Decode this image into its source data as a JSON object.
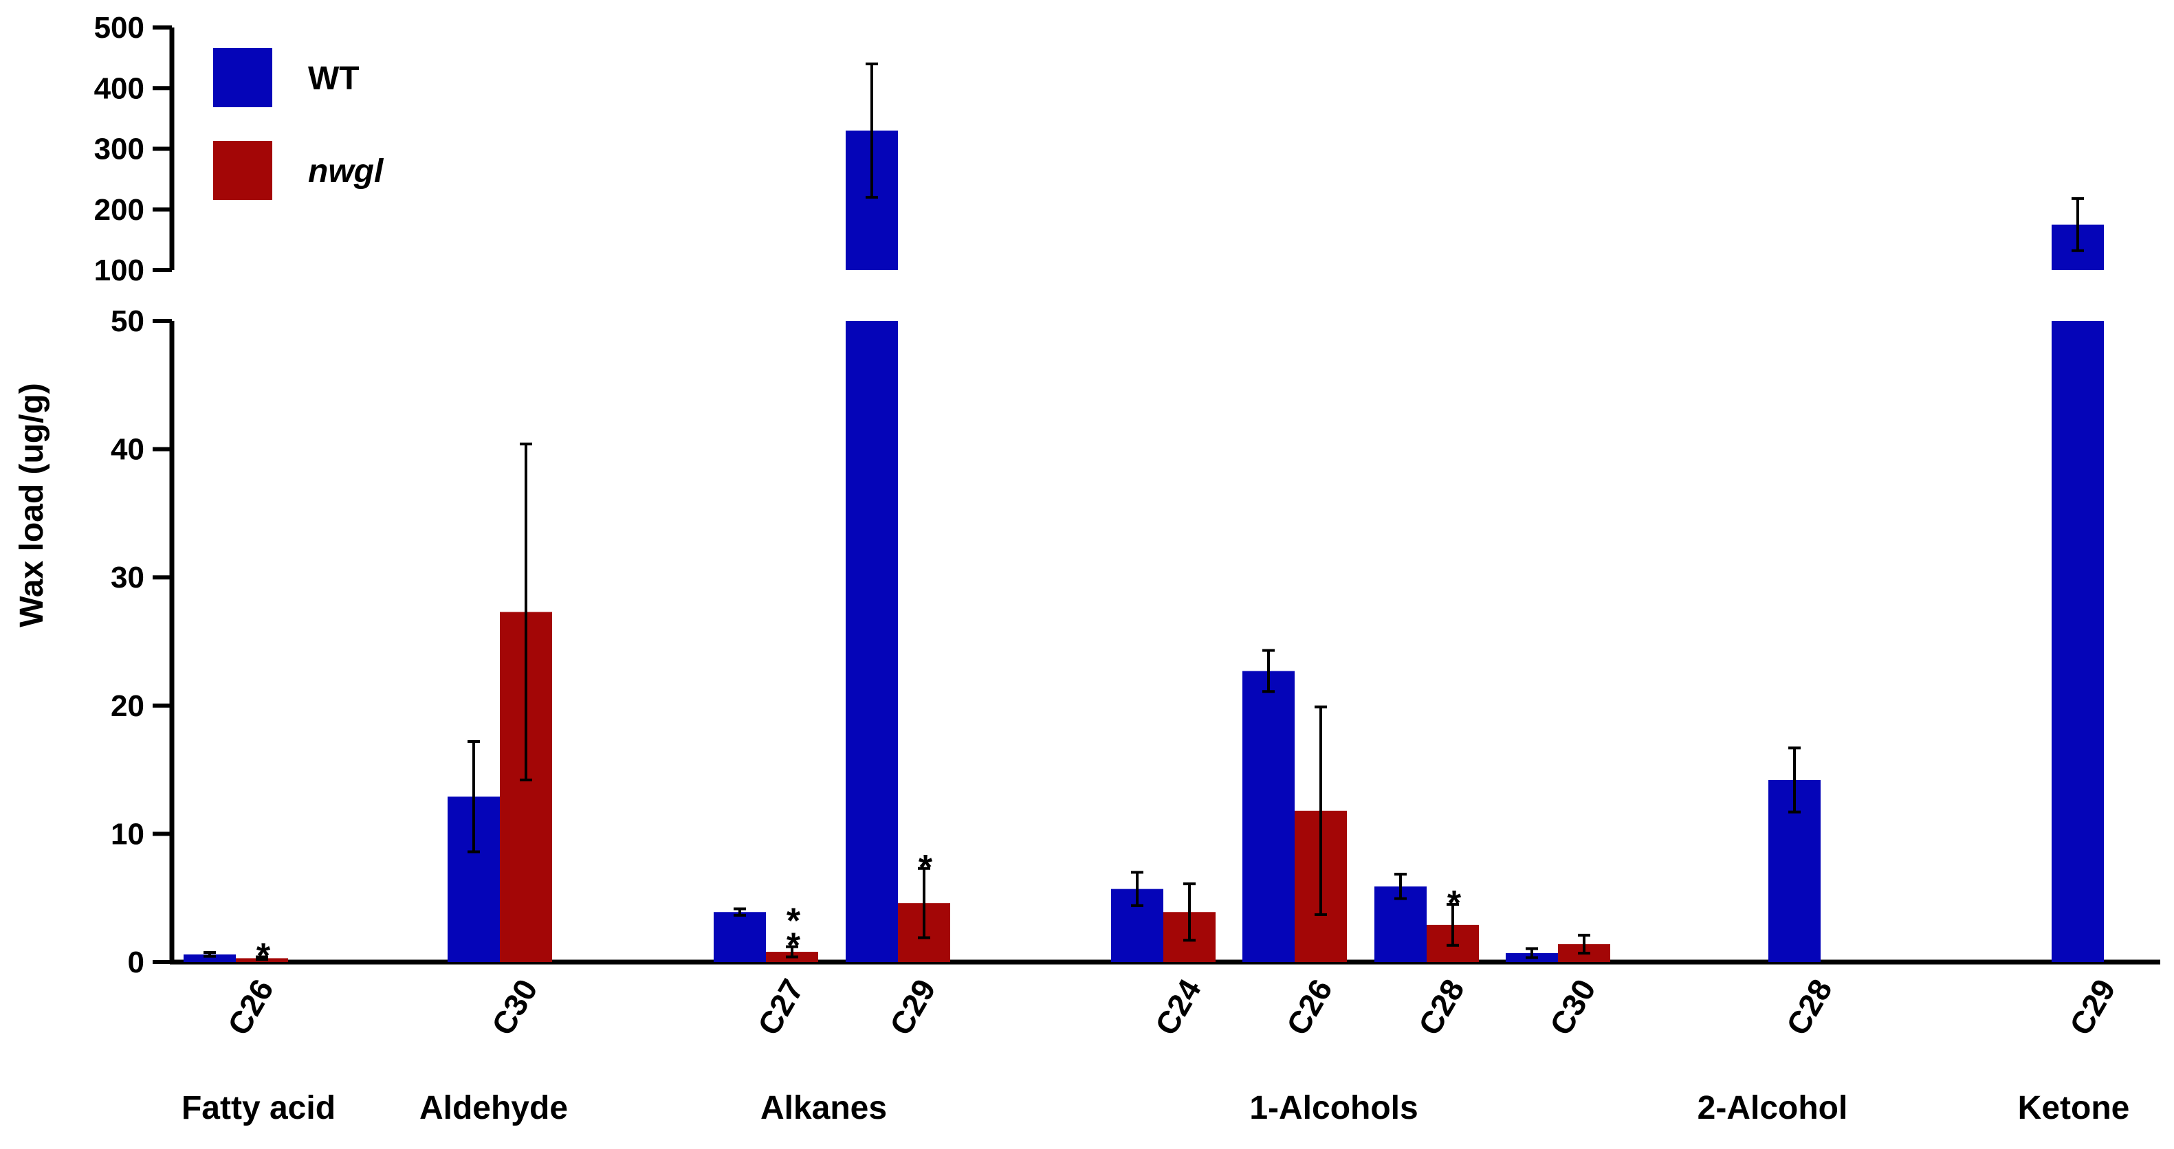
{
  "chart_data": {
    "type": "bar",
    "title": "",
    "xlabel": "",
    "ylabel": "Wax load (ug/g)",
    "grid": false,
    "legend_position": "top-left",
    "y_axis_break": {
      "lower_segment": {
        "range": [
          0,
          50
        ],
        "ticks": [
          0,
          10,
          20,
          30,
          40,
          50
        ]
      },
      "upper_segment": {
        "range": [
          100,
          500
        ],
        "ticks": [
          100,
          200,
          300,
          400,
          500
        ]
      }
    },
    "colors": {
      "WT": "#0505b8",
      "nwgl": "#a30606",
      "error_bar": "#000000"
    },
    "series": [
      {
        "name": "WT",
        "italic": false
      },
      {
        "name": "nwgl",
        "italic": true
      }
    ],
    "groups": [
      {
        "label": "Fatty acid",
        "compounds": [
          "C26"
        ]
      },
      {
        "label": "Aldehyde",
        "compounds": [
          "C30"
        ]
      },
      {
        "label": "Alkanes",
        "compounds": [
          "C27",
          "C29"
        ]
      },
      {
        "label": "1-Alcohols",
        "compounds": [
          "C24",
          "C26",
          "C28",
          "C30"
        ]
      },
      {
        "label": "2-Alcohol",
        "compounds": [
          "C28"
        ]
      },
      {
        "label": "Ketone",
        "compounds": [
          "C29"
        ]
      }
    ],
    "categories": [
      "C26",
      "C30",
      "C27",
      "C29",
      "C24",
      "C26",
      "C28",
      "C30",
      "C28",
      "C29"
    ],
    "bars": [
      {
        "category_index": 0,
        "series": "WT",
        "value": 0.6,
        "error": 0.15,
        "sig": ""
      },
      {
        "category_index": 0,
        "series": "nwgl",
        "value": 0.3,
        "error": 0.1,
        "sig": "*"
      },
      {
        "category_index": 1,
        "series": "WT",
        "value": 12.9,
        "error": 4.3,
        "sig": ""
      },
      {
        "category_index": 1,
        "series": "nwgl",
        "value": 27.3,
        "error": 13.1,
        "sig": ""
      },
      {
        "category_index": 2,
        "series": "WT",
        "value": 3.9,
        "error": 0.25,
        "sig": ""
      },
      {
        "category_index": 2,
        "series": "nwgl",
        "value": 0.8,
        "error": 0.4,
        "sig": "**"
      },
      {
        "category_index": 3,
        "series": "WT",
        "value": 330,
        "error": 110,
        "sig": ""
      },
      {
        "category_index": 3,
        "series": "nwgl",
        "value": 4.6,
        "error": 2.7,
        "sig": "*"
      },
      {
        "category_index": 4,
        "series": "WT",
        "value": 5.7,
        "error": 1.3,
        "sig": ""
      },
      {
        "category_index": 4,
        "series": "nwgl",
        "value": 3.9,
        "error": 2.2,
        "sig": ""
      },
      {
        "category_index": 5,
        "series": "WT",
        "value": 22.7,
        "error": 1.6,
        "sig": ""
      },
      {
        "category_index": 5,
        "series": "nwgl",
        "value": 11.8,
        "error": 8.1,
        "sig": ""
      },
      {
        "category_index": 6,
        "series": "WT",
        "value": 5.9,
        "error": 0.95,
        "sig": ""
      },
      {
        "category_index": 6,
        "series": "nwgl",
        "value": 2.9,
        "error": 1.6,
        "sig": "*"
      },
      {
        "category_index": 7,
        "series": "WT",
        "value": 0.7,
        "error": 0.35,
        "sig": ""
      },
      {
        "category_index": 7,
        "series": "nwgl",
        "value": 1.4,
        "error": 0.7,
        "sig": ""
      },
      {
        "category_index": 8,
        "series": "WT",
        "value": 14.2,
        "error": 2.5,
        "sig": ""
      },
      {
        "category_index": 9,
        "series": "WT",
        "value": 175,
        "error": 43,
        "sig": ""
      }
    ]
  }
}
